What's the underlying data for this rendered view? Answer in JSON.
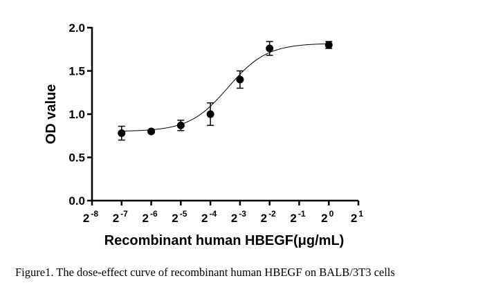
{
  "chart_data": {
    "type": "scatter",
    "xlabel": "Recombinant human HBEGF(μg/mL)",
    "ylabel": "OD value",
    "x_scale": "log2",
    "xlim": [
      "2^-8",
      "2^1"
    ],
    "ylim": [
      0,
      2.0
    ],
    "x_ticks": [
      {
        "base": "2",
        "exp": "-8"
      },
      {
        "base": "2",
        "exp": "-7"
      },
      {
        "base": "2",
        "exp": "-6"
      },
      {
        "base": "2",
        "exp": "-5"
      },
      {
        "base": "2",
        "exp": "-4"
      },
      {
        "base": "2",
        "exp": "-3"
      },
      {
        "base": "2",
        "exp": "-2"
      },
      {
        "base": "2",
        "exp": "-1"
      },
      {
        "base": "2",
        "exp": "0"
      },
      {
        "base": "2",
        "exp": "1"
      }
    ],
    "y_ticks": [
      "0.0",
      "0.5",
      "1.0",
      "1.5",
      "2.0"
    ],
    "grid": false,
    "points": [
      {
        "x": "2^-7",
        "y": 0.78,
        "err": 0.08
      },
      {
        "x": "2^-6",
        "y": 0.8,
        "err": 0.02
      },
      {
        "x": "2^-5",
        "y": 0.87,
        "err": 0.06
      },
      {
        "x": "2^-4",
        "y": 1.0,
        "err": 0.13
      },
      {
        "x": "2^-3",
        "y": 1.4,
        "err": 0.1
      },
      {
        "x": "2^-2",
        "y": 1.76,
        "err": 0.08
      },
      {
        "x": "2^0",
        "y": 1.8,
        "err": 0.04
      }
    ],
    "fit_curve": {
      "bottom": 0.8,
      "top": 1.82,
      "ec50": "2^-3.4",
      "hill": 2.2
    }
  },
  "caption": "Figure1. The dose-effect curve of recombinant human HBEGF on BALB/3T3 cells"
}
